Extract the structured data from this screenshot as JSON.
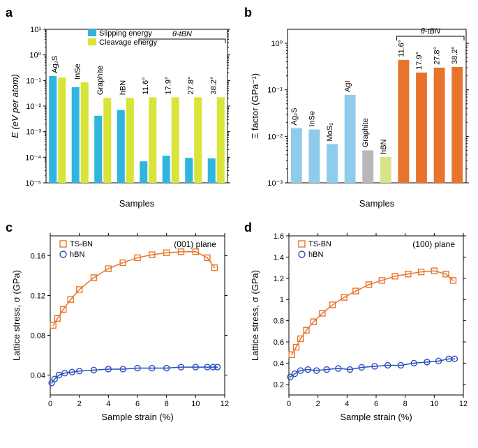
{
  "panels": {
    "a": {
      "label": "a",
      "type": "bar",
      "yscale": "log",
      "ylim": [
        1e-05,
        10
      ],
      "yticks": [
        1e-05,
        0.0001,
        0.001,
        0.01,
        0.1,
        1,
        10
      ],
      "ytick_labels": [
        "10⁻⁵",
        "10⁻⁴",
        "10⁻³",
        "10⁻²",
        "10⁻¹",
        "10⁰",
        "10¹"
      ],
      "ylabel": "E (eV per atom)",
      "xlabel": "Samples",
      "bracket": {
        "text": "θ-tBN",
        "start_index": 4,
        "end_index": 7
      },
      "legend": [
        {
          "label": "Slipping energy",
          "color": "#2fb5e0"
        },
        {
          "label": "Cleavage energy",
          "color": "#d8e438"
        }
      ],
      "categories": [
        {
          "label": "Ag₂S",
          "label_rot": -90,
          "slipping": 0.15,
          "cleavage": 0.13
        },
        {
          "label": "InSe",
          "label_rot": -90,
          "slipping": 0.055,
          "cleavage": 0.085
        },
        {
          "label": "Graphite",
          "label_rot": -90,
          "slipping": 0.0042,
          "cleavage": 0.021
        },
        {
          "label": "hBN",
          "label_rot": -90,
          "slipping": 0.007,
          "cleavage": 0.021
        },
        {
          "label": "11.6°",
          "label_rot": -90,
          "slipping": 6.9e-05,
          "cleavage": 0.022
        },
        {
          "label": "17.9°",
          "label_rot": -90,
          "slipping": 0.000115,
          "cleavage": 0.022
        },
        {
          "label": "27.8°",
          "label_rot": -90,
          "slipping": 9.5e-05,
          "cleavage": 0.022
        },
        {
          "label": "38.2°",
          "label_rot": -90,
          "slipping": 9e-05,
          "cleavage": 0.022
        }
      ],
      "bar_colors": {
        "slipping": "#2fb5e0",
        "cleavage": "#d8e438"
      },
      "bar_gap": 0.18,
      "group_gap": 0.3,
      "background_color": "#ffffff",
      "axis_color": "#000000"
    },
    "b": {
      "label": "b",
      "type": "bar",
      "yscale": "log",
      "ylim": [
        0.001,
        2
      ],
      "yticks": [
        0.001,
        0.01,
        0.1,
        1
      ],
      "ytick_labels": [
        "10⁻³",
        "10⁻²",
        "10⁻¹",
        "10⁰"
      ],
      "ylabel": "Ξ factor (GPa⁻¹)",
      "xlabel": "Samples",
      "bracket": {
        "text": "θ-tBN",
        "start_index": 6,
        "end_index": 9
      },
      "categories": [
        {
          "label": "Ag₂S",
          "label_rot": -90,
          "value": 0.015,
          "color": "#8fcceb"
        },
        {
          "label": "InSe",
          "label_rot": -90,
          "value": 0.014,
          "color": "#8fcceb"
        },
        {
          "label": "MoS₂",
          "label_rot": -90,
          "value": 0.0068,
          "color": "#8fcceb"
        },
        {
          "label": "AgI",
          "label_rot": -90,
          "value": 0.078,
          "color": "#8fcceb"
        },
        {
          "label": "Graphite",
          "label_rot": -90,
          "value": 0.005,
          "color": "#b8b8b8"
        },
        {
          "label": "hBN",
          "label_rot": -90,
          "value": 0.0036,
          "color": "#d8e48a"
        },
        {
          "label": "11.6°",
          "label_rot": -90,
          "value": 0.44,
          "color": "#e8742c"
        },
        {
          "label": "17.9°",
          "label_rot": -90,
          "value": 0.235,
          "color": "#e8742c"
        },
        {
          "label": "27.8°",
          "label_rot": -90,
          "value": 0.3,
          "color": "#e8742c"
        },
        {
          "label": "38.2°",
          "label_rot": -90,
          "value": 0.31,
          "color": "#e8742c"
        }
      ],
      "bar_width": 0.62,
      "background_color": "#ffffff",
      "axis_color": "#000000"
    },
    "c": {
      "label": "c",
      "type": "scatter-line",
      "plane_label": "(001) plane",
      "xlabel": "Sample strain (%)",
      "ylabel": "Lattice stress, σ (GPa)",
      "xlim": [
        0,
        12
      ],
      "xticks": [
        0,
        2,
        4,
        6,
        8,
        10,
        12
      ],
      "ylim": [
        0.02,
        0.18
      ],
      "yticks": [
        0.04,
        0.08,
        0.12,
        0.16
      ],
      "legend": [
        {
          "label": "TS-BN",
          "color": "#e8742c",
          "marker": "square"
        },
        {
          "label": "hBN",
          "color": "#2a4fbf",
          "marker": "circle"
        }
      ],
      "series": {
        "tsbn": {
          "color": "#e8742c",
          "marker": "square",
          "points": [
            {
              "x": 0.2,
              "y": 0.09
            },
            {
              "x": 0.5,
              "y": 0.097
            },
            {
              "x": 0.9,
              "y": 0.106
            },
            {
              "x": 1.4,
              "y": 0.116
            },
            {
              "x": 2.0,
              "y": 0.126
            },
            {
              "x": 3.0,
              "y": 0.138
            },
            {
              "x": 4.0,
              "y": 0.147
            },
            {
              "x": 5.0,
              "y": 0.153
            },
            {
              "x": 6.0,
              "y": 0.158
            },
            {
              "x": 7.0,
              "y": 0.161
            },
            {
              "x": 8.0,
              "y": 0.163
            },
            {
              "x": 9.0,
              "y": 0.164
            },
            {
              "x": 10.0,
              "y": 0.164
            },
            {
              "x": 10.8,
              "y": 0.158
            },
            {
              "x": 11.3,
              "y": 0.148
            }
          ]
        },
        "hbn": {
          "color": "#2a4fbf",
          "marker": "circle",
          "points": [
            {
              "x": 0.1,
              "y": 0.032
            },
            {
              "x": 0.3,
              "y": 0.036
            },
            {
              "x": 0.6,
              "y": 0.04
            },
            {
              "x": 1.0,
              "y": 0.042
            },
            {
              "x": 1.5,
              "y": 0.043
            },
            {
              "x": 2.0,
              "y": 0.044
            },
            {
              "x": 3.0,
              "y": 0.045
            },
            {
              "x": 4.0,
              "y": 0.046
            },
            {
              "x": 5.0,
              "y": 0.046
            },
            {
              "x": 6.0,
              "y": 0.047
            },
            {
              "x": 7.0,
              "y": 0.047
            },
            {
              "x": 8.0,
              "y": 0.047
            },
            {
              "x": 9.0,
              "y": 0.048
            },
            {
              "x": 10.0,
              "y": 0.048
            },
            {
              "x": 10.8,
              "y": 0.048
            },
            {
              "x": 11.2,
              "y": 0.048
            },
            {
              "x": 11.5,
              "y": 0.048
            }
          ]
        }
      }
    },
    "d": {
      "label": "d",
      "type": "scatter-line",
      "plane_label": "(100) plane",
      "xlabel": "Sample strain (%)",
      "ylabel": "Lattice stress, σ (GPa)",
      "xlim": [
        0,
        12
      ],
      "xticks": [
        0,
        2,
        4,
        6,
        8,
        10,
        12
      ],
      "ylim": [
        0.1,
        1.6
      ],
      "yticks": [
        0.2,
        0.4,
        0.6,
        0.8,
        1.0,
        1.2,
        1.4,
        1.6
      ],
      "legend": [
        {
          "label": "TS-BN",
          "color": "#e8742c",
          "marker": "square"
        },
        {
          "label": "hBN",
          "color": "#2a4fbf",
          "marker": "circle"
        }
      ],
      "series": {
        "tsbn": {
          "color": "#e8742c",
          "marker": "square",
          "points": [
            {
              "x": 0.2,
              "y": 0.48
            },
            {
              "x": 0.5,
              "y": 0.55
            },
            {
              "x": 0.8,
              "y": 0.63
            },
            {
              "x": 1.2,
              "y": 0.71
            },
            {
              "x": 1.7,
              "y": 0.79
            },
            {
              "x": 2.3,
              "y": 0.87
            },
            {
              "x": 3.0,
              "y": 0.95
            },
            {
              "x": 3.8,
              "y": 1.02
            },
            {
              "x": 4.6,
              "y": 1.08
            },
            {
              "x": 5.5,
              "y": 1.14
            },
            {
              "x": 6.4,
              "y": 1.18
            },
            {
              "x": 7.3,
              "y": 1.22
            },
            {
              "x": 8.2,
              "y": 1.24
            },
            {
              "x": 9.1,
              "y": 1.26
            },
            {
              "x": 10.0,
              "y": 1.27
            },
            {
              "x": 10.8,
              "y": 1.24
            },
            {
              "x": 11.3,
              "y": 1.18
            }
          ]
        },
        "hbn": {
          "color": "#2a4fbf",
          "marker": "circle",
          "points": [
            {
              "x": 0.1,
              "y": 0.27
            },
            {
              "x": 0.4,
              "y": 0.3
            },
            {
              "x": 0.8,
              "y": 0.33
            },
            {
              "x": 1.3,
              "y": 0.34
            },
            {
              "x": 1.9,
              "y": 0.33
            },
            {
              "x": 2.6,
              "y": 0.34
            },
            {
              "x": 3.4,
              "y": 0.35
            },
            {
              "x": 4.2,
              "y": 0.34
            },
            {
              "x": 5.0,
              "y": 0.36
            },
            {
              "x": 5.9,
              "y": 0.37
            },
            {
              "x": 6.8,
              "y": 0.38
            },
            {
              "x": 7.7,
              "y": 0.38
            },
            {
              "x": 8.6,
              "y": 0.4
            },
            {
              "x": 9.5,
              "y": 0.41
            },
            {
              "x": 10.3,
              "y": 0.42
            },
            {
              "x": 11.0,
              "y": 0.44
            },
            {
              "x": 11.4,
              "y": 0.44
            }
          ]
        }
      }
    }
  },
  "style": {
    "label_fontsize": 18,
    "tick_fontsize": 11,
    "axis_title_fontsize": 13,
    "marker_size": 6,
    "line_width": 1.5,
    "axis_color": "#000000",
    "background_color": "#ffffff"
  }
}
